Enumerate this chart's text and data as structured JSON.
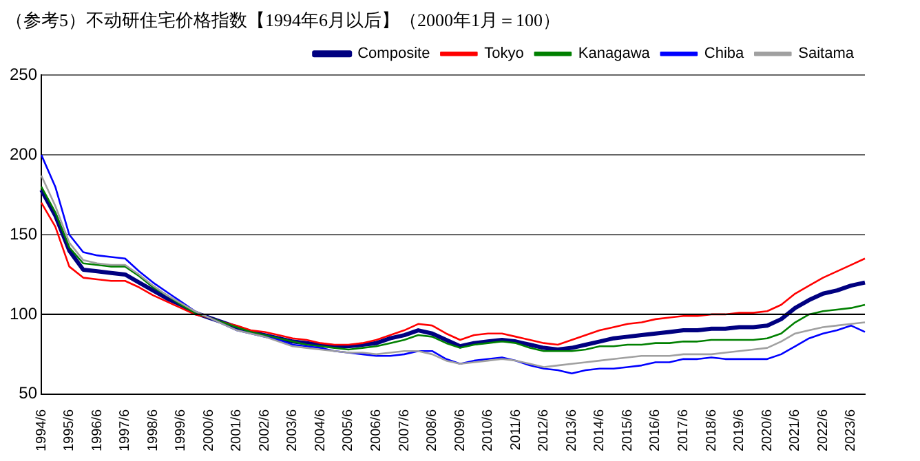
{
  "chart_data": {
    "type": "line",
    "title": "（参考5）不动研住宅价格指数【1994年6月以后】（2000年1月＝100）",
    "categories": [
      "1994/6",
      null,
      "1995/6",
      null,
      "1996/6",
      null,
      "1997/6",
      null,
      "1998/6",
      null,
      "1999/6",
      null,
      "2000/6",
      null,
      "2001/6",
      null,
      "2002/6",
      null,
      "2003/6",
      null,
      "2004/6",
      null,
      "2005/6",
      null,
      "2006/6",
      null,
      "2007/6",
      null,
      "2008/6",
      null,
      "2009/6",
      null,
      "2010/6",
      null,
      "2011/6",
      null,
      "2012/6",
      null,
      "2013/6",
      null,
      "2014/6",
      null,
      "2015/6",
      null,
      "2016/6",
      null,
      "2017/6",
      null,
      "2018/6",
      null,
      "2019/6",
      null,
      "2020/6",
      null,
      "2021/6",
      null,
      "2022/6",
      null,
      "2023/6",
      null
    ],
    "series": [
      {
        "name": "Composite",
        "color": "#000080",
        "values": [
          178,
          162,
          140,
          128,
          127,
          126,
          125,
          120,
          115,
          110,
          106,
          101,
          98,
          95,
          92,
          89,
          87,
          85,
          83,
          82,
          81,
          80,
          80,
          81,
          82,
          85,
          87,
          90,
          88,
          84,
          80,
          82,
          83,
          84,
          83,
          81,
          79,
          78,
          79,
          81,
          83,
          85,
          86,
          87,
          88,
          89,
          90,
          90,
          91,
          91,
          92,
          92,
          93,
          97,
          104,
          109,
          113,
          115,
          118,
          120
        ]
      },
      {
        "name": "Tokyo",
        "color": "#ff0000",
        "values": [
          170,
          155,
          130,
          123,
          122,
          121,
          121,
          117,
          112,
          108,
          104,
          100,
          98,
          95,
          93,
          90,
          89,
          87,
          85,
          84,
          82,
          81,
          81,
          82,
          84,
          87,
          90,
          94,
          93,
          88,
          84,
          87,
          88,
          88,
          86,
          84,
          82,
          81,
          84,
          87,
          90,
          92,
          94,
          95,
          97,
          98,
          99,
          99,
          100,
          100,
          101,
          101,
          102,
          106,
          113,
          118,
          123,
          127,
          131,
          135
        ]
      },
      {
        "name": "Kanagawa",
        "color": "#008000",
        "values": [
          180,
          164,
          142,
          132,
          131,
          130,
          130,
          124,
          117,
          112,
          106,
          101,
          98,
          95,
          92,
          89,
          87,
          85,
          83,
          81,
          80,
          79,
          78,
          79,
          80,
          82,
          84,
          87,
          86,
          82,
          79,
          81,
          82,
          83,
          82,
          79,
          77,
          77,
          77,
          78,
          80,
          80,
          81,
          81,
          82,
          82,
          83,
          83,
          84,
          84,
          84,
          84,
          85,
          88,
          95,
          100,
          102,
          103,
          104,
          106
        ]
      },
      {
        "name": "Chiba",
        "color": "#0000ff",
        "values": [
          200,
          180,
          150,
          139,
          137,
          136,
          135,
          127,
          120,
          114,
          108,
          102,
          98,
          94,
          90,
          88,
          86,
          84,
          81,
          80,
          79,
          77,
          76,
          75,
          74,
          74,
          75,
          77,
          77,
          72,
          69,
          71,
          72,
          73,
          71,
          68,
          66,
          65,
          63,
          65,
          66,
          66,
          67,
          68,
          70,
          70,
          72,
          72,
          73,
          72,
          72,
          72,
          72,
          75,
          80,
          85,
          88,
          90,
          93,
          89
        ]
      },
      {
        "name": "Saitama",
        "color": "#a0a0a0",
        "values": [
          187,
          168,
          145,
          134,
          132,
          131,
          131,
          125,
          118,
          112,
          107,
          102,
          98,
          94,
          90,
          88,
          86,
          83,
          80,
          79,
          78,
          77,
          76,
          76,
          75,
          76,
          77,
          77,
          75,
          71,
          69,
          70,
          71,
          72,
          71,
          69,
          67,
          68,
          69,
          70,
          71,
          72,
          73,
          74,
          74,
          74,
          75,
          75,
          75,
          76,
          77,
          78,
          79,
          83,
          88,
          90,
          92,
          93,
          94,
          95
        ]
      }
    ],
    "ylim": [
      50,
      250
    ],
    "yticks": [
      50,
      100,
      150,
      200,
      250
    ],
    "ref_lines": [
      {
        "axis": "y",
        "value": 100,
        "color": "#000000"
      }
    ],
    "grid": "y",
    "legend": "top right",
    "line_style": "solid"
  }
}
